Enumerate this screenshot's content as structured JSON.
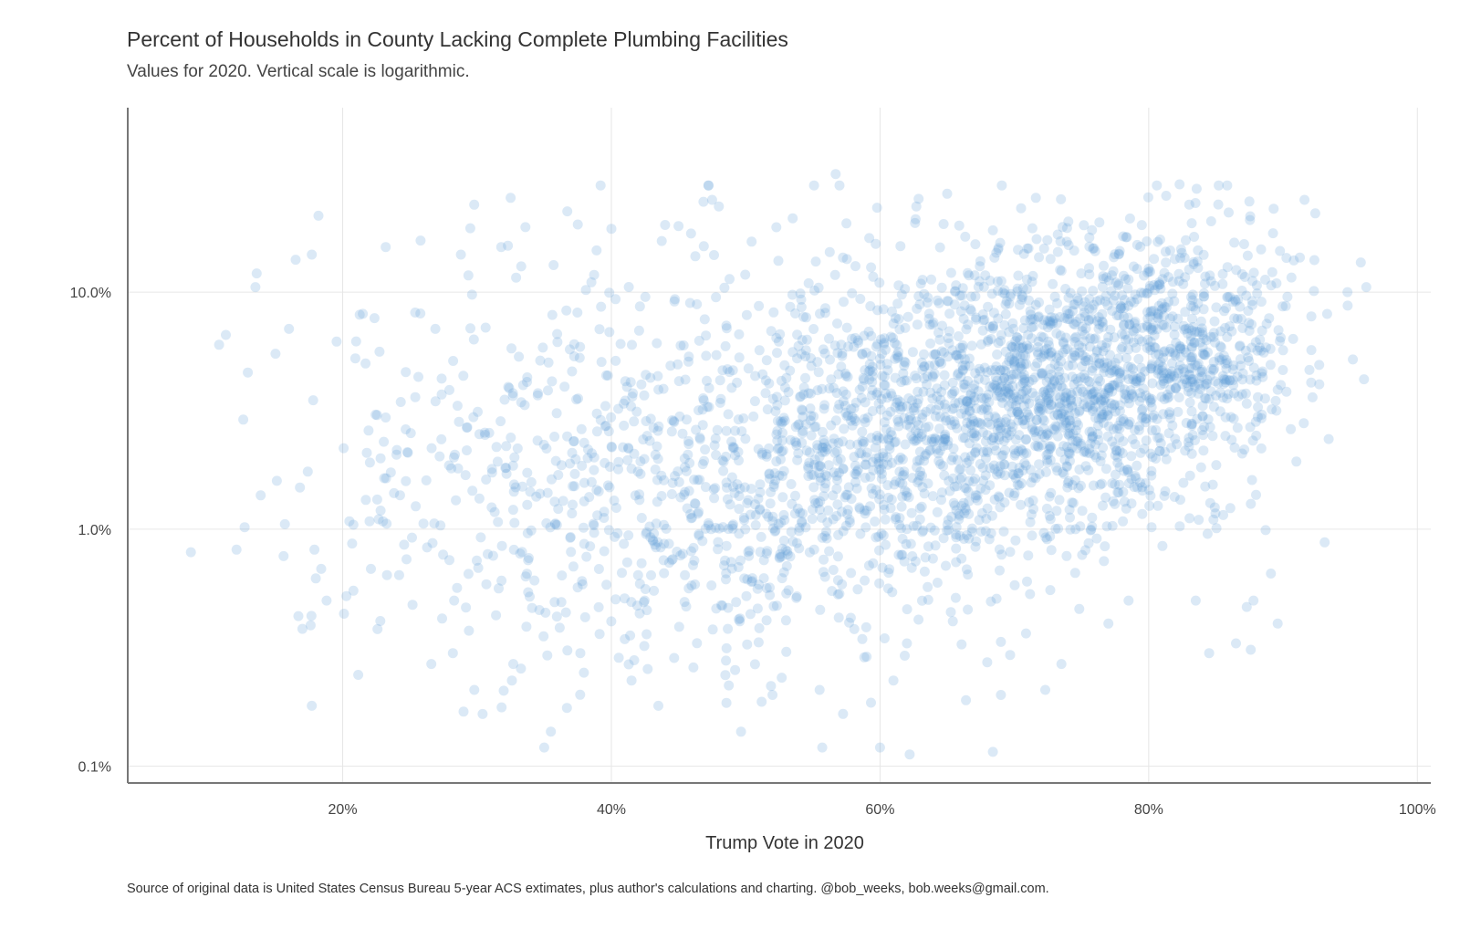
{
  "title": "Percent of Households in County Lacking Complete Plumbing Facilities",
  "subtitle": "Values for 2020. Vertical scale is logarithmic.",
  "caption": "Source of original data is United States Census Bureau 5-year ACS extimates, plus author's calculations and charting. @bob_weeks, bob.weeks@gmail.com.",
  "colors": {
    "point": "#5b9bd5",
    "grid": "#e6e6e6",
    "axis": "#777777"
  },
  "chart_data": {
    "type": "scatter",
    "xlabel": "Trump Vote in 2020",
    "ylabel": "",
    "x_scale": "linear",
    "y_scale": "log",
    "xlim": [
      0.04,
      1.01
    ],
    "ylim": [
      0.085,
      60
    ],
    "x_ticks": [
      {
        "value": 0.2,
        "label": "20%"
      },
      {
        "value": 0.4,
        "label": "40%"
      },
      {
        "value": 0.6,
        "label": "60%"
      },
      {
        "value": 0.8,
        "label": "80%"
      },
      {
        "value": 1.0,
        "label": "100%"
      }
    ],
    "y_ticks": [
      {
        "value": 0.1,
        "label": "0.1%"
      },
      {
        "value": 1,
        "label": "1.0%"
      },
      {
        "value": 10,
        "label": "10.0%"
      }
    ],
    "grid": true,
    "point_opacity": 0.22,
    "point_note": "about 3,100 counties; the outlying points are listed, the dense central cloud is summarised by the clusters below",
    "points": [
      [
        0.087,
        0.8
      ],
      [
        0.108,
        6.0
      ],
      [
        0.113,
        6.6
      ],
      [
        0.121,
        0.82
      ],
      [
        0.126,
        2.9
      ],
      [
        0.127,
        1.02
      ],
      [
        0.135,
        10.5
      ],
      [
        0.136,
        12.0
      ],
      [
        0.139,
        1.39
      ],
      [
        0.15,
        5.5
      ],
      [
        0.151,
        1.6
      ],
      [
        0.156,
        0.77
      ],
      [
        0.157,
        1.05
      ],
      [
        0.16,
        7.0
      ],
      [
        0.165,
        13.7
      ],
      [
        0.167,
        0.43
      ],
      [
        0.17,
        0.38
      ],
      [
        0.174,
        1.75
      ],
      [
        0.177,
        14.4
      ],
      [
        0.177,
        0.18
      ],
      [
        0.178,
        3.5
      ],
      [
        0.179,
        0.82
      ],
      [
        0.18,
        0.62
      ],
      [
        0.182,
        21.0
      ],
      [
        0.184,
        0.68
      ],
      [
        0.188,
        0.5
      ],
      [
        0.201,
        0.44
      ],
      [
        0.205,
        1.08
      ],
      [
        0.207,
        0.87
      ],
      [
        0.208,
        0.55
      ],
      [
        0.21,
        6.2
      ],
      [
        0.215,
        8.1
      ],
      [
        0.217,
        5.0
      ],
      [
        0.218,
        2.1
      ],
      [
        0.22,
        1.08
      ],
      [
        0.221,
        0.68
      ],
      [
        0.228,
        0.41
      ],
      [
        0.23,
        1.08
      ],
      [
        0.232,
        15.5
      ],
      [
        0.232,
        2.96
      ],
      [
        0.233,
        0.64
      ],
      [
        0.242,
        0.64
      ],
      [
        0.247,
        4.6
      ],
      [
        0.252,
        0.48
      ],
      [
        0.254,
        8.2
      ],
      [
        0.258,
        16.5
      ],
      [
        0.266,
        0.27
      ],
      [
        0.269,
        7.0
      ],
      [
        0.274,
        0.42
      ],
      [
        0.282,
        0.3
      ],
      [
        0.283,
        0.5
      ],
      [
        0.288,
        14.4
      ],
      [
        0.29,
        0.17
      ],
      [
        0.295,
        18.6
      ],
      [
        0.298,
        0.21
      ],
      [
        0.306,
        2.5
      ],
      [
        0.318,
        15.5
      ],
      [
        0.323,
        15.7
      ],
      [
        0.325,
        25.0
      ],
      [
        0.326,
        0.23
      ],
      [
        0.327,
        0.27
      ],
      [
        0.336,
        18.8
      ],
      [
        0.35,
        0.12
      ],
      [
        0.355,
        0.14
      ],
      [
        0.357,
        13.0
      ],
      [
        0.375,
        19.3
      ],
      [
        0.389,
        15.0
      ],
      [
        0.4,
        18.5
      ],
      [
        0.415,
        0.23
      ],
      [
        0.417,
        0.28
      ],
      [
        0.435,
        0.18
      ],
      [
        0.44,
        19.2
      ],
      [
        0.45,
        19.0
      ],
      [
        0.475,
        24.5
      ],
      [
        0.48,
        23.0
      ],
      [
        0.52,
        0.2
      ],
      [
        0.535,
        20.5
      ],
      [
        0.555,
        0.21
      ],
      [
        0.557,
        0.12
      ],
      [
        0.567,
        31.5
      ],
      [
        0.575,
        19.5
      ],
      [
        0.59,
        0.29
      ],
      [
        0.6,
        0.12
      ],
      [
        0.61,
        0.23
      ],
      [
        0.62,
        0.33
      ],
      [
        0.627,
        23.0
      ],
      [
        0.65,
        26.0
      ],
      [
        0.664,
        0.19
      ],
      [
        0.684,
        0.115
      ],
      [
        0.69,
        0.2
      ],
      [
        0.716,
        25.0
      ],
      [
        0.723,
        0.21
      ],
      [
        0.735,
        0.27
      ],
      [
        0.77,
        0.4
      ],
      [
        0.785,
        0.5
      ],
      [
        0.813,
        25.5
      ],
      [
        0.823,
        28.5
      ],
      [
        0.835,
        0.5
      ],
      [
        0.845,
        0.3
      ],
      [
        0.865,
        0.33
      ],
      [
        0.873,
        0.47
      ],
      [
        0.876,
        0.31
      ],
      [
        0.878,
        0.5
      ],
      [
        0.891,
        0.65
      ],
      [
        0.893,
        22.5
      ],
      [
        0.896,
        0.4
      ],
      [
        0.916,
        24.5
      ],
      [
        0.922,
        3.6
      ],
      [
        0.924,
        21.5
      ],
      [
        0.931,
        0.88
      ],
      [
        0.934,
        2.4
      ],
      [
        0.948,
        10.0
      ],
      [
        0.952,
        5.2
      ],
      [
        0.962,
        10.5
      ]
    ],
    "clusters": [
      {
        "x": 0.3,
        "x_spread": 0.06,
        "y_log10": 0.2,
        "y_log10_spread": 0.42,
        "count": 160
      },
      {
        "x": 0.42,
        "x_spread": 0.065,
        "y_log10": 0.15,
        "y_log10_spread": 0.4,
        "count": 360
      },
      {
        "x": 0.54,
        "x_spread": 0.06,
        "y_log10": 0.28,
        "y_log10_spread": 0.4,
        "count": 480
      },
      {
        "x": 0.63,
        "x_spread": 0.055,
        "y_log10": 0.45,
        "y_log10_spread": 0.36,
        "count": 600
      },
      {
        "x": 0.72,
        "x_spread": 0.045,
        "y_log10": 0.58,
        "y_log10_spread": 0.31,
        "count": 620
      },
      {
        "x": 0.79,
        "x_spread": 0.045,
        "y_log10": 0.68,
        "y_log10_spread": 0.3,
        "count": 620
      },
      {
        "x": 0.86,
        "x_spread": 0.035,
        "y_log10": 0.8,
        "y_log10_spread": 0.28,
        "count": 220
      }
    ]
  }
}
